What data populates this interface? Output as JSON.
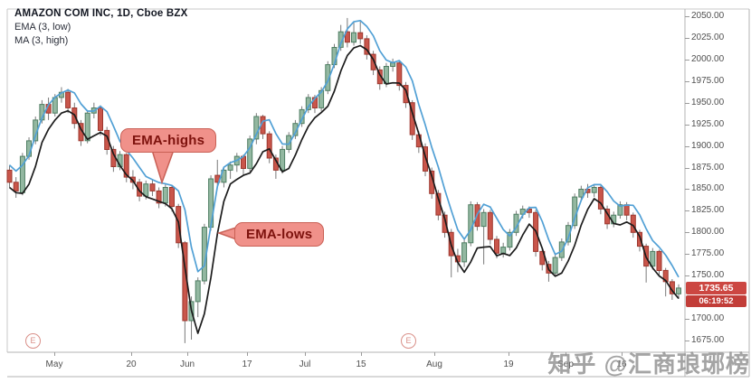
{
  "header": {
    "title": "AMAZON COM INC, 1D, Cboe BZX",
    "indicator_1": "EMA (3, low)",
    "indicator_2": "MA (3, high)"
  },
  "callouts": {
    "highs": {
      "label": "EMA-highs"
    },
    "lows": {
      "label": "EMA-lows"
    }
  },
  "price_badge": {
    "price": "1735.65",
    "countdown": "06:19:52"
  },
  "watermark": "知乎 @汇商琅琊榜",
  "earnings_markers": {
    "label": "E",
    "positions_x": [
      36,
      451
    ]
  },
  "price_axis": {
    "labels": [
      "2050.00",
      "2025.00",
      "2000.00",
      "1975.00",
      "1950.00",
      "1925.00",
      "1900.00",
      "1875.00",
      "1850.00",
      "1825.00",
      "1800.00",
      "1775.00",
      "1750.00",
      "1700.00",
      "1675.00"
    ]
  },
  "time_axis": {
    "ticks": [
      {
        "label": "May",
        "x": 60
      },
      {
        "label": "20",
        "x": 145
      },
      {
        "label": "Jun",
        "x": 207
      },
      {
        "label": "17",
        "x": 273
      },
      {
        "label": "Jul",
        "x": 337
      },
      {
        "label": "15",
        "x": 399
      },
      {
        "label": "Aug",
        "x": 480
      },
      {
        "label": "19",
        "x": 562
      },
      {
        "label": "Sep",
        "x": 625
      },
      {
        "label": "16",
        "x": 687
      }
    ]
  },
  "colors": {
    "up_fill": "#93b8a1",
    "up_stroke": "#4e7d62",
    "down_fill": "#c9564b",
    "down_stroke": "#9c372e",
    "wick": "#7a7a7a",
    "ema_line": "#51a0d5",
    "ma_line": "#1c1c1c",
    "badge_bg": "#cc4742",
    "countdown_bg": "#c23d38",
    "callout_bg": "#f0918a",
    "callout_border": "#c96055",
    "callout_text": "#7d120d",
    "axis_text": "#4f4f4f",
    "frame": "#c9c9c9",
    "earnings": "#d98f88",
    "watermark_color": "#8e8e8e"
  },
  "chart_data": {
    "type": "candlestick",
    "symbol": "AMAZON COM INC",
    "interval": "1D",
    "exchange": "Cboe BZX",
    "ylim": [
      1675,
      2050
    ],
    "last_price": 1735.65,
    "overlays": [
      {
        "name": "EMA (3, low)",
        "annotation": "EMA-highs",
        "color": "#51a0d5",
        "source": "high",
        "period": 3
      },
      {
        "name": "MA (3, high)",
        "annotation": "EMA-lows",
        "color": "#1c1c1c",
        "source": "low",
        "period": 3
      }
    ],
    "candles": [
      [
        1872,
        1878,
        1852,
        1858
      ],
      [
        1858,
        1864,
        1840,
        1848
      ],
      [
        1846,
        1892,
        1843,
        1888
      ],
      [
        1888,
        1910,
        1884,
        1906
      ],
      [
        1906,
        1934,
        1902,
        1930
      ],
      [
        1930,
        1953,
        1926,
        1948
      ],
      [
        1948,
        1956,
        1930,
        1938
      ],
      [
        1938,
        1960,
        1934,
        1956
      ],
      [
        1956,
        1968,
        1950,
        1962
      ],
      [
        1962,
        1966,
        1938,
        1944
      ],
      [
        1944,
        1950,
        1920,
        1926
      ],
      [
        1926,
        1930,
        1900,
        1906
      ],
      [
        1906,
        1941,
        1903,
        1938
      ],
      [
        1938,
        1950,
        1932,
        1944
      ],
      [
        1944,
        1947,
        1912,
        1918
      ],
      [
        1918,
        1922,
        1890,
        1896
      ],
      [
        1896,
        1900,
        1870,
        1876
      ],
      [
        1876,
        1894,
        1872,
        1890
      ],
      [
        1890,
        1892,
        1858,
        1864
      ],
      [
        1864,
        1872,
        1850,
        1858
      ],
      [
        1858,
        1862,
        1836,
        1842
      ],
      [
        1842,
        1860,
        1838,
        1856
      ],
      [
        1856,
        1861,
        1842,
        1848
      ],
      [
        1848,
        1852,
        1828,
        1834
      ],
      [
        1834,
        1856,
        1830,
        1852
      ],
      [
        1852,
        1855,
        1824,
        1830
      ],
      [
        1830,
        1833,
        1782,
        1788
      ],
      [
        1788,
        1790,
        1672,
        1698
      ],
      [
        1698,
        1726,
        1676,
        1720
      ],
      [
        1720,
        1748,
        1702,
        1744
      ],
      [
        1744,
        1810,
        1740,
        1806
      ],
      [
        1806,
        1866,
        1802,
        1862
      ],
      [
        1866,
        1884,
        1854,
        1858
      ],
      [
        1858,
        1876,
        1852,
        1872
      ],
      [
        1872,
        1882,
        1862,
        1878
      ],
      [
        1878,
        1892,
        1870,
        1888
      ],
      [
        1888,
        1890,
        1866,
        1874
      ],
      [
        1874,
        1912,
        1870,
        1908
      ],
      [
        1908,
        1938,
        1902,
        1934
      ],
      [
        1934,
        1936,
        1908,
        1914
      ],
      [
        1914,
        1917,
        1880,
        1886
      ],
      [
        1886,
        1890,
        1862,
        1872
      ],
      [
        1872,
        1900,
        1868,
        1896
      ],
      [
        1896,
        1916,
        1892,
        1912
      ],
      [
        1912,
        1930,
        1908,
        1926
      ],
      [
        1926,
        1946,
        1922,
        1942
      ],
      [
        1942,
        1960,
        1938,
        1956
      ],
      [
        1956,
        1959,
        1938,
        1944
      ],
      [
        1944,
        1968,
        1940,
        1964
      ],
      [
        1964,
        1998,
        1960,
        1994
      ],
      [
        1994,
        2018,
        1990,
        2014
      ],
      [
        2014,
        2040,
        2010,
        2032
      ],
      [
        2032,
        2048,
        2014,
        2020
      ],
      [
        2020,
        2043,
        2016,
        2031
      ],
      [
        2031,
        2044,
        2018,
        2024
      ],
      [
        2024,
        2028,
        2000,
        2006
      ],
      [
        2006,
        2010,
        1982,
        1988
      ],
      [
        1988,
        1992,
        1965,
        1972
      ],
      [
        1972,
        1996,
        1968,
        1992
      ],
      [
        1992,
        2001,
        1986,
        1996
      ],
      [
        1996,
        1999,
        1964,
        1970
      ],
      [
        1970,
        1974,
        1944,
        1950
      ],
      [
        1950,
        1953,
        1907,
        1913
      ],
      [
        1913,
        1917,
        1892,
        1899
      ],
      [
        1899,
        1903,
        1865,
        1871
      ],
      [
        1871,
        1875,
        1839,
        1845
      ],
      [
        1845,
        1849,
        1814,
        1820
      ],
      [
        1820,
        1824,
        1794,
        1800
      ],
      [
        1800,
        1804,
        1748,
        1773
      ],
      [
        1773,
        1781,
        1754,
        1766
      ],
      [
        1766,
        1792,
        1760,
        1788
      ],
      [
        1788,
        1836,
        1784,
        1832
      ],
      [
        1832,
        1835,
        1802,
        1807
      ],
      [
        1807,
        1827,
        1763,
        1823
      ],
      [
        1823,
        1826,
        1786,
        1792
      ],
      [
        1792,
        1796,
        1770,
        1776
      ],
      [
        1776,
        1788,
        1771,
        1783
      ],
      [
        1783,
        1804,
        1779,
        1800
      ],
      [
        1800,
        1825,
        1796,
        1821
      ],
      [
        1821,
        1831,
        1816,
        1827
      ],
      [
        1827,
        1830,
        1817,
        1823
      ],
      [
        1823,
        1826,
        1772,
        1778
      ],
      [
        1778,
        1782,
        1756,
        1763
      ],
      [
        1763,
        1767,
        1743,
        1753
      ],
      [
        1753,
        1775,
        1749,
        1771
      ],
      [
        1771,
        1793,
        1767,
        1789
      ],
      [
        1789,
        1812,
        1785,
        1808
      ],
      [
        1808,
        1845,
        1804,
        1841
      ],
      [
        1841,
        1854,
        1836,
        1850
      ],
      [
        1850,
        1856,
        1840,
        1846
      ],
      [
        1846,
        1856,
        1841,
        1852
      ],
      [
        1852,
        1854,
        1821,
        1827
      ],
      [
        1827,
        1831,
        1804,
        1810
      ],
      [
        1810,
        1824,
        1806,
        1820
      ],
      [
        1820,
        1836,
        1816,
        1832
      ],
      [
        1832,
        1835,
        1814,
        1820
      ],
      [
        1820,
        1823,
        1794,
        1800
      ],
      [
        1800,
        1803,
        1778,
        1784
      ],
      [
        1784,
        1787,
        1742,
        1761
      ],
      [
        1761,
        1782,
        1757,
        1778
      ],
      [
        1778,
        1780,
        1750,
        1756
      ],
      [
        1756,
        1759,
        1726,
        1743
      ],
      [
        1743,
        1746,
        1722,
        1729
      ],
      [
        1729,
        1740,
        1723,
        1735.65
      ]
    ]
  }
}
